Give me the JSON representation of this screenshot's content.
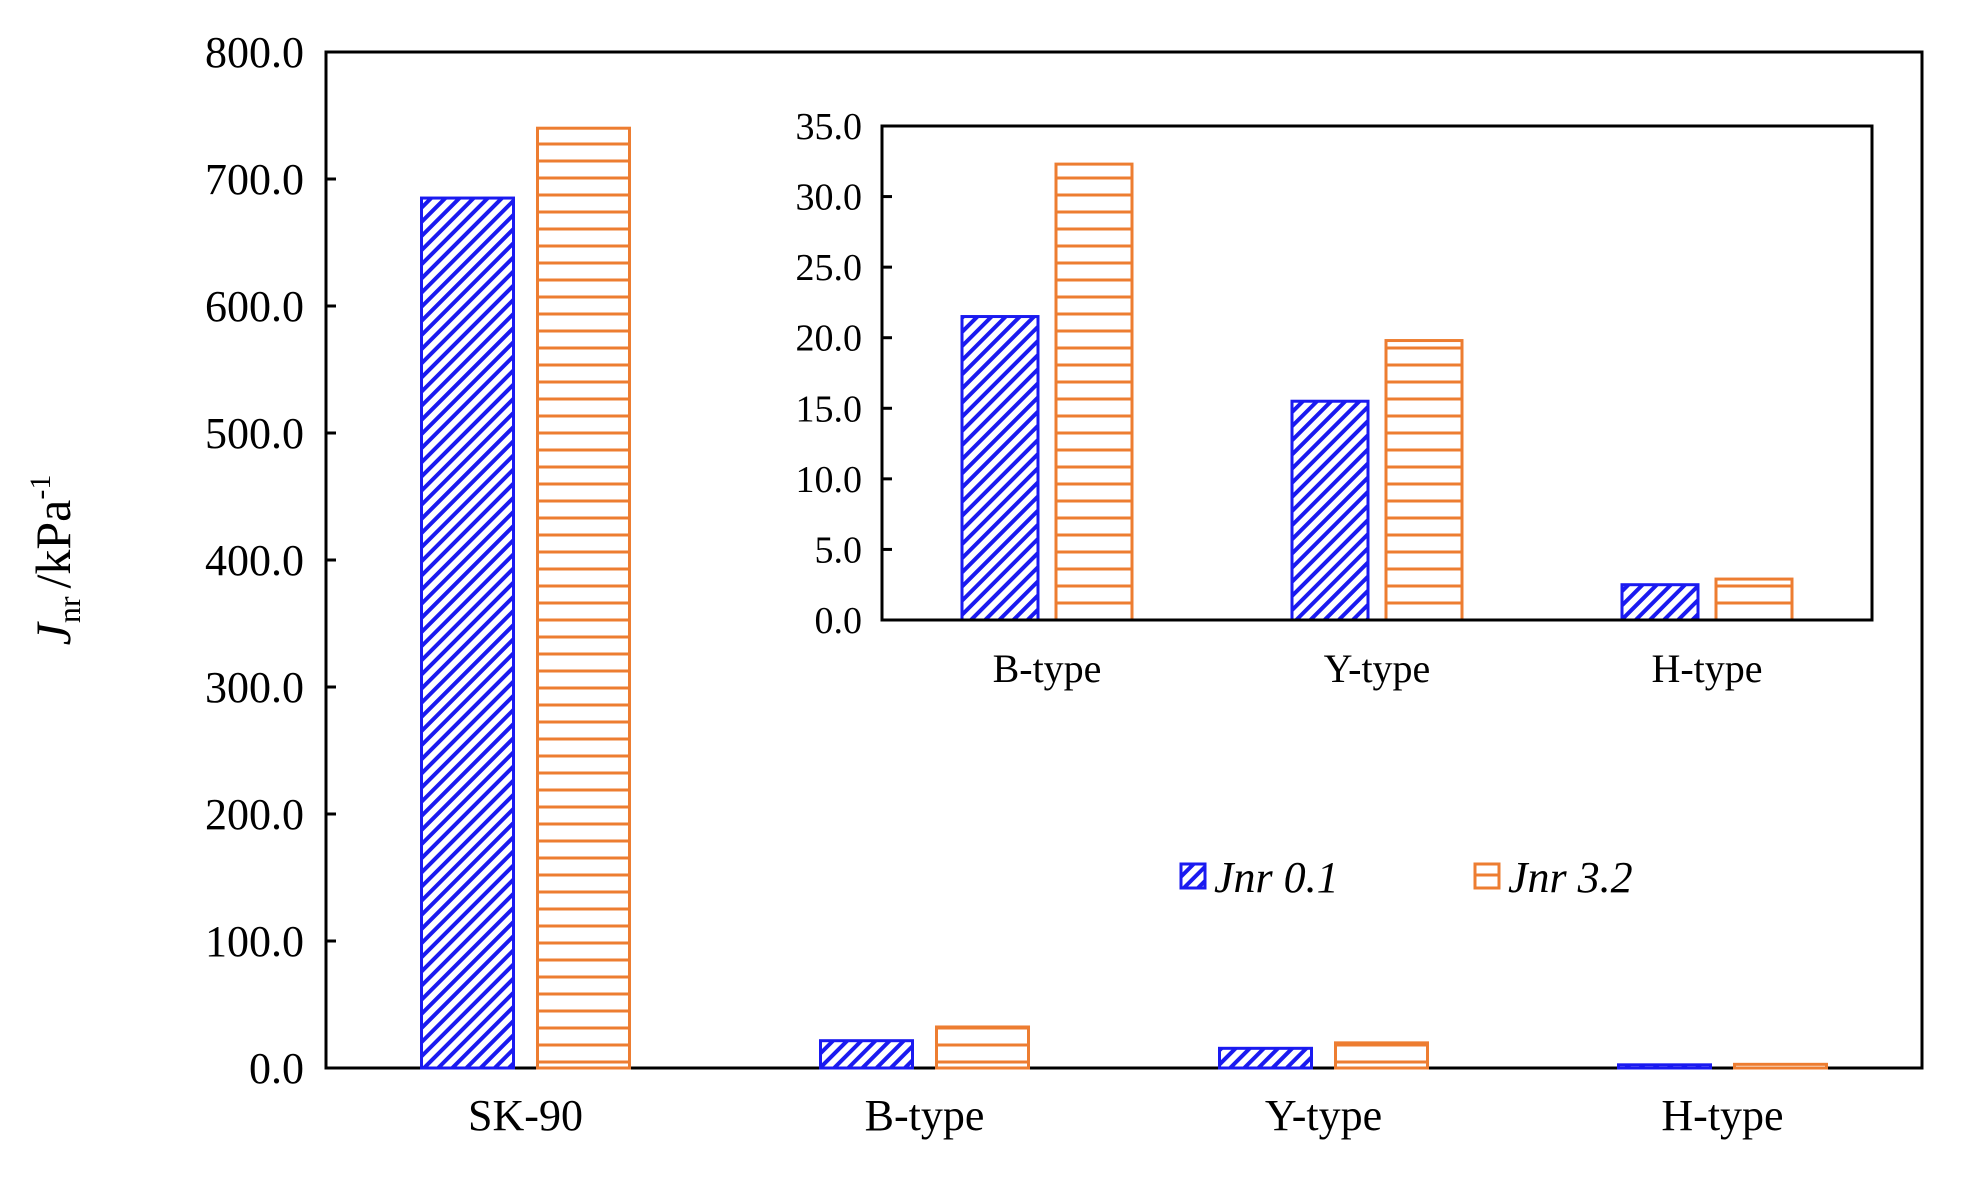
{
  "chart_data": [
    {
      "type": "bar",
      "title": "",
      "xlabel": "",
      "ylabel": {
        "main": "J",
        "sub": "nr",
        "unit": "/kPa",
        "sup": "-1"
      },
      "categories": [
        "SK-90",
        "B-type",
        "Y-type",
        "H-type"
      ],
      "series": [
        {
          "name": "Jnr 0.1",
          "values": [
            685.0,
            21.5,
            15.5,
            2.5
          ]
        },
        {
          "name": "Jnr 3.2",
          "values": [
            740.0,
            32.3,
            19.8,
            2.9
          ]
        }
      ],
      "ylim": [
        0,
        800
      ],
      "yticks": [
        "0.0",
        "100.0",
        "200.0",
        "300.0",
        "400.0",
        "500.0",
        "600.0",
        "700.0",
        "800.0"
      ],
      "grid": false,
      "legend": "center-right"
    },
    {
      "type": "bar",
      "title": "",
      "xlabel": "",
      "ylabel": "",
      "categories": [
        "B-type",
        "Y-type",
        "H-type"
      ],
      "series": [
        {
          "name": "Jnr 0.1",
          "values": [
            21.5,
            15.5,
            2.5
          ]
        },
        {
          "name": "Jnr 3.2",
          "values": [
            32.3,
            19.8,
            2.9
          ]
        }
      ],
      "ylim": [
        0,
        35
      ],
      "yticks": [
        "0.0",
        "5.0",
        "10.0",
        "15.0",
        "20.0",
        "25.0",
        "30.0",
        "35.0"
      ],
      "grid": false,
      "legend": "none"
    }
  ],
  "legend": {
    "items": [
      {
        "label": "Jnr 0.1",
        "color": "#1a1af0"
      },
      {
        "label": "Jnr 3.2",
        "color": "#ed7d31"
      }
    ]
  },
  "colors": {
    "series1": "#1a1af0",
    "series2": "#ed7d31",
    "axis": "#000000"
  }
}
